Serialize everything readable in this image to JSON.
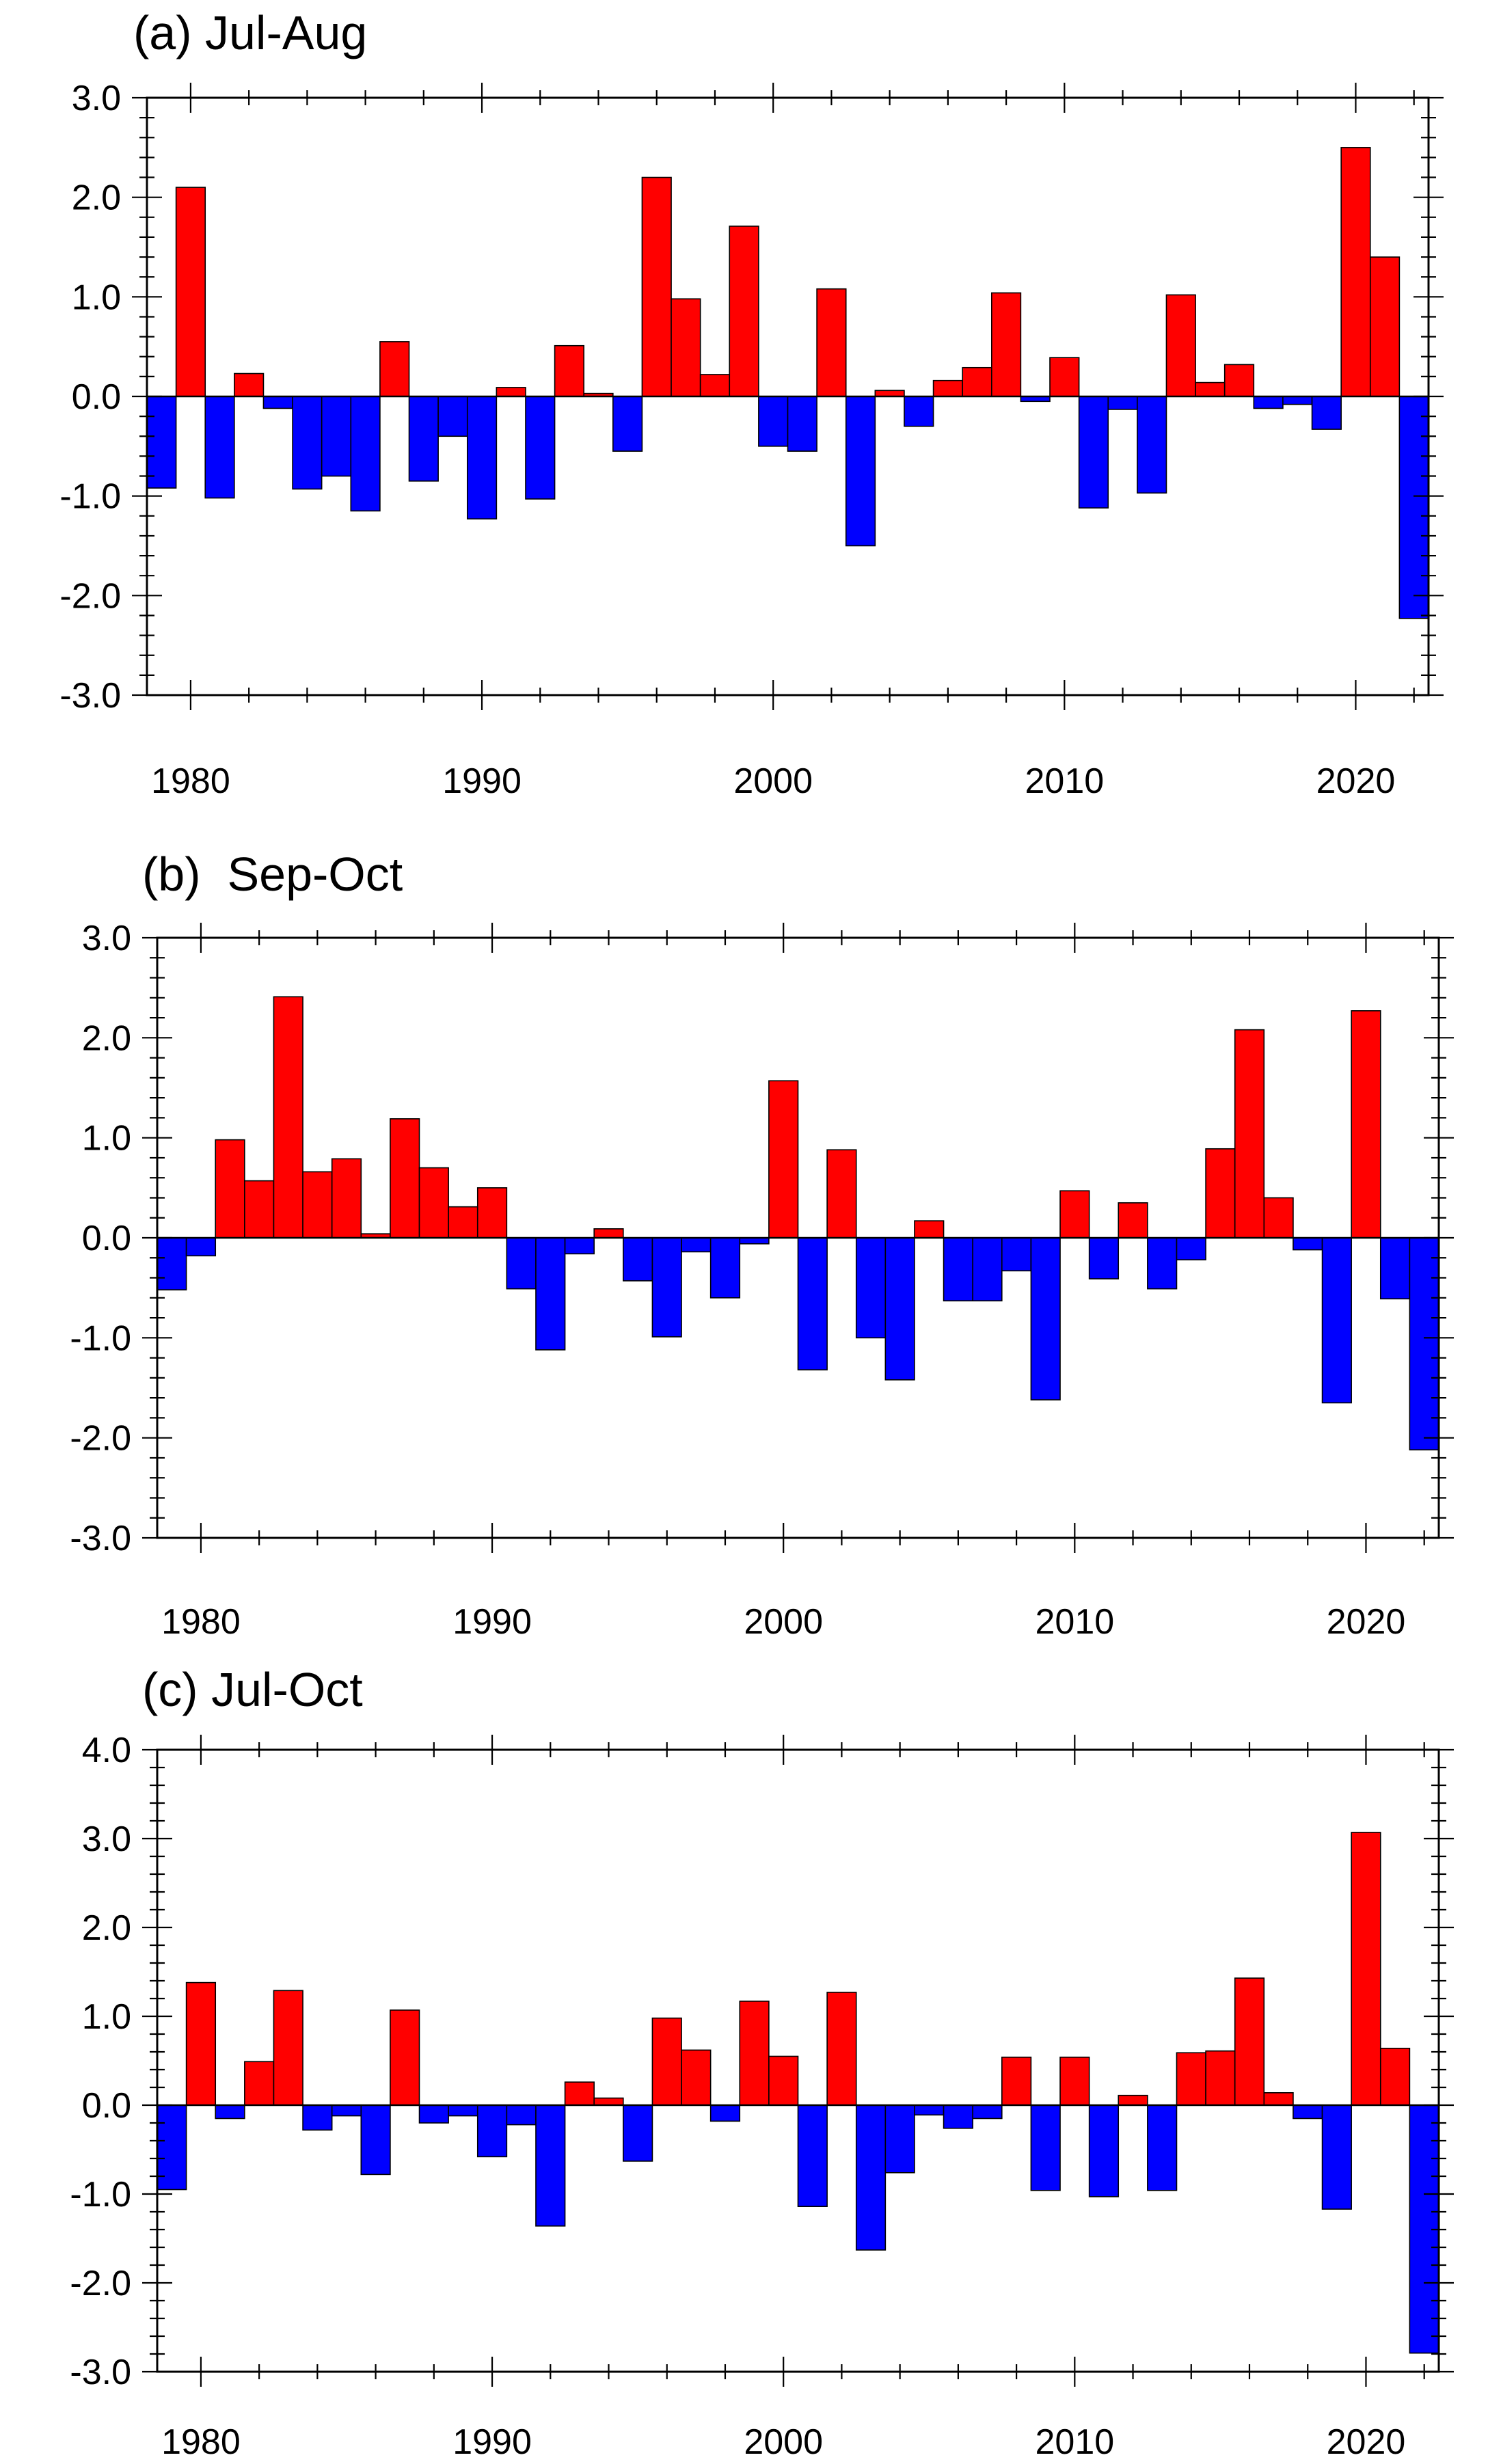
{
  "figure": {
    "colors": {
      "positive": "#ff0000",
      "negative": "#0000ff",
      "outline": "#000000",
      "background": "#ffffff"
    }
  },
  "chart_data": [
    {
      "type": "bar",
      "title": "(a) Jul-Aug",
      "xlabel": "",
      "ylabel": "",
      "x_range": [
        1978.5,
        2022.5
      ],
      "xticks": [
        1980,
        1990,
        2000,
        2010,
        2020
      ],
      "xtick_labels": [
        "1980",
        "1990",
        "2000",
        "2010",
        "2020"
      ],
      "ylim": [
        -3.0,
        3.0
      ],
      "yticks": [
        -3,
        -2,
        -1,
        0,
        1,
        2,
        3
      ],
      "ytick_labels": [
        "-3.0",
        "-2.0",
        "-1.0",
        "0.0",
        "1.0",
        "2.0",
        "3.0"
      ],
      "categories": [
        1979,
        1980,
        1981,
        1982,
        1983,
        1984,
        1985,
        1986,
        1987,
        1988,
        1989,
        1990,
        1991,
        1992,
        1993,
        1994,
        1995,
        1996,
        1997,
        1998,
        1999,
        2000,
        2001,
        2002,
        2003,
        2004,
        2005,
        2006,
        2007,
        2008,
        2009,
        2010,
        2011,
        2012,
        2013,
        2014,
        2015,
        2016,
        2017,
        2018,
        2019,
        2020,
        2021,
        2022
      ],
      "values": [
        -0.92,
        2.1,
        -1.02,
        0.23,
        -0.12,
        -0.93,
        -0.8,
        -1.15,
        0.55,
        -0.85,
        -0.4,
        -1.23,
        0.09,
        -1.03,
        0.51,
        0.03,
        -0.55,
        2.2,
        0.98,
        0.22,
        1.71,
        -0.5,
        -0.55,
        1.08,
        -1.5,
        0.06,
        -0.3,
        0.16,
        0.29,
        1.04,
        -0.05,
        0.39,
        -1.12,
        -0.13,
        -0.97,
        1.02,
        0.14,
        0.32,
        -0.12,
        -0.08,
        -0.33,
        2.5,
        1.4,
        -2.23
      ]
    },
    {
      "type": "bar",
      "title": "(b)  Sep-Oct",
      "xlabel": "",
      "ylabel": "",
      "x_range": [
        1978.5,
        2022.5
      ],
      "xticks": [
        1980,
        1990,
        2000,
        2010,
        2020
      ],
      "xtick_labels": [
        "1980",
        "1990",
        "2000",
        "2010",
        "2020"
      ],
      "ylim": [
        -3.0,
        3.0
      ],
      "yticks": [
        -3,
        -2,
        -1,
        0,
        1,
        2,
        3
      ],
      "ytick_labels": [
        "-3.0",
        "-2.0",
        "-1.0",
        "0.0",
        "1.0",
        "2.0",
        "3.0"
      ],
      "categories": [
        1979,
        1980,
        1981,
        1982,
        1983,
        1984,
        1985,
        1986,
        1987,
        1988,
        1989,
        1990,
        1991,
        1992,
        1993,
        1994,
        1995,
        1996,
        1997,
        1998,
        1999,
        2000,
        2001,
        2002,
        2003,
        2004,
        2005,
        2006,
        2007,
        2008,
        2009,
        2010,
        2011,
        2012,
        2013,
        2014,
        2015,
        2016,
        2017,
        2018,
        2019,
        2020,
        2021,
        2022
      ],
      "values": [
        -0.52,
        -0.18,
        0.98,
        0.57,
        2.41,
        0.66,
        0.79,
        0.04,
        1.19,
        0.7,
        0.31,
        0.5,
        -0.51,
        -1.12,
        -0.16,
        0.09,
        -0.43,
        -0.99,
        -0.14,
        -0.6,
        -0.06,
        1.57,
        -1.32,
        0.88,
        -1.0,
        -1.42,
        0.17,
        -0.63,
        -0.63,
        -0.33,
        -1.62,
        0.47,
        -0.41,
        0.35,
        -0.51,
        -0.22,
        0.89,
        2.08,
        0.4,
        -0.12,
        -1.65,
        2.27,
        -0.61,
        -2.12
      ]
    },
    {
      "type": "bar",
      "title": "(c) Jul-Oct",
      "xlabel": "",
      "ylabel": "",
      "x_range": [
        1978.5,
        2022.5
      ],
      "xticks": [
        1980,
        1990,
        2000,
        2010,
        2020
      ],
      "xtick_labels": [
        "1980",
        "1990",
        "2000",
        "2010",
        "2020"
      ],
      "ylim": [
        -3.0,
        4.0
      ],
      "yticks": [
        -3,
        -2,
        -1,
        0,
        1,
        2,
        3,
        4
      ],
      "ytick_labels": [
        "-3.0",
        "-2.0",
        "-1.0",
        "0.0",
        "1.0",
        "2.0",
        "3.0",
        "4.0"
      ],
      "categories": [
        1979,
        1980,
        1981,
        1982,
        1983,
        1984,
        1985,
        1986,
        1987,
        1988,
        1989,
        1990,
        1991,
        1992,
        1993,
        1994,
        1995,
        1996,
        1997,
        1998,
        1999,
        2000,
        2001,
        2002,
        2003,
        2004,
        2005,
        2006,
        2007,
        2008,
        2009,
        2010,
        2011,
        2012,
        2013,
        2014,
        2015,
        2016,
        2017,
        2018,
        2019,
        2020,
        2021,
        2022
      ],
      "values": [
        -0.95,
        1.38,
        -0.15,
        0.49,
        1.29,
        -0.28,
        -0.12,
        -0.78,
        1.07,
        -0.2,
        -0.12,
        -0.58,
        -0.22,
        -1.36,
        0.26,
        0.08,
        -0.63,
        0.98,
        0.62,
        -0.18,
        1.17,
        0.55,
        -1.14,
        1.27,
        -1.63,
        -0.76,
        -0.11,
        -0.26,
        -0.15,
        0.54,
        -0.96,
        0.54,
        -1.03,
        0.11,
        -0.96,
        0.59,
        0.61,
        1.43,
        0.14,
        -0.15,
        -1.17,
        3.07,
        0.64,
        -2.79
      ]
    }
  ]
}
